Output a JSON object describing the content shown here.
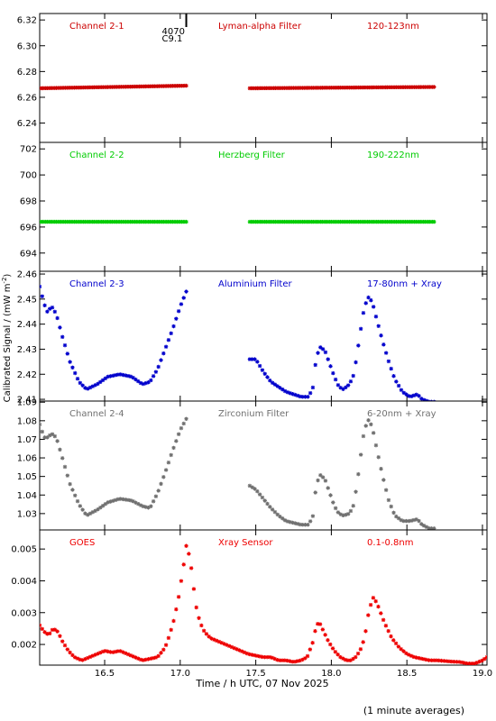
{
  "chart_data": {
    "type": "scatter",
    "xlabel": "Time / h UTC, 07 Nov 2025",
    "ylabel": "Calibrated Signal / (mW m",
    "ylabel_sup": "-2",
    "ylabel_close": ")",
    "footnote": "(1 minute averages)",
    "xlim": [
      16.07,
      19.03
    ],
    "xticks": [
      {
        "v": 16.5,
        "label": "16.5"
      },
      {
        "v": 17.0,
        "label": "17.0"
      },
      {
        "v": 17.5,
        "label": "17.5"
      },
      {
        "v": 18.0,
        "label": "18.0"
      },
      {
        "v": 18.5,
        "label": "18.5"
      },
      {
        "v": 19.0,
        "label": "19.0"
      }
    ],
    "event": {
      "x": 17.04,
      "label1": "4070",
      "label2": "C9.1"
    },
    "panels": [
      {
        "id": "ch2-1",
        "color": "#cc0000",
        "channel": "Channel 2-1",
        "filter": "Lyman-alpha Filter",
        "band": "120-123nm",
        "ylim": [
          6.225,
          6.325
        ],
        "yticks": [
          {
            "v": 6.24,
            "label": "6.24"
          },
          {
            "v": 6.26,
            "label": "6.26"
          },
          {
            "v": 6.28,
            "label": "6.28"
          },
          {
            "v": 6.3,
            "label": "6.30"
          },
          {
            "v": 6.32,
            "label": "6.32"
          }
        ],
        "segments": [
          {
            "x": [
              16.07,
              17.04
            ],
            "y": [
              6.267,
              6.269
            ]
          },
          {
            "x": [
              17.46,
              18.68
            ],
            "y": [
              6.267,
              6.268
            ]
          }
        ]
      },
      {
        "id": "ch2-2",
        "color": "#00cc00",
        "channel": "Channel 2-2",
        "filter": "Herzberg Filter",
        "band": "190-222nm",
        "ylim": [
          692.6,
          702.5
        ],
        "yticks": [
          {
            "v": 694,
            "label": "694"
          },
          {
            "v": 696,
            "label": "696"
          },
          {
            "v": 698,
            "label": "698"
          },
          {
            "v": 700,
            "label": "700"
          },
          {
            "v": 702,
            "label": "702"
          }
        ],
        "segments": [
          {
            "x": [
              16.07,
              17.04
            ],
            "y": [
              696.4,
              696.4
            ]
          },
          {
            "x": [
              17.46,
              18.68
            ],
            "y": [
              696.4,
              696.4
            ]
          }
        ]
      },
      {
        "id": "ch2-3",
        "color": "#0000cc",
        "channel": "Channel 2-3",
        "filter": "Aluminium Filter",
        "band": "17-80nm + Xray",
        "ylim": [
          2.4093,
          2.4611
        ],
        "yticks": [
          {
            "v": 2.41,
            "label": "2.41"
          },
          {
            "v": 2.42,
            "label": "2.42"
          },
          {
            "v": 2.43,
            "label": "2.43"
          },
          {
            "v": 2.44,
            "label": "2.44"
          },
          {
            "v": 2.45,
            "label": "2.45"
          },
          {
            "v": 2.46,
            "label": "2.46"
          }
        ],
        "curves": [
          {
            "x": [
              16.07,
              16.1,
              16.12,
              16.15,
              16.18,
              16.22,
              16.27,
              16.33,
              16.38,
              16.45,
              16.52,
              16.6,
              16.68,
              16.75,
              16.8,
              16.85,
              16.9,
              16.95,
              17.0,
              17.04
            ],
            "y": [
              2.455,
              2.448,
              2.445,
              2.447,
              2.444,
              2.435,
              2.425,
              2.417,
              2.414,
              2.416,
              2.419,
              2.42,
              2.419,
              2.416,
              2.417,
              2.422,
              2.43,
              2.438,
              2.447,
              2.453
            ]
          },
          {
            "x": [
              17.46,
              17.5,
              17.55,
              17.6,
              17.65,
              17.7,
              17.75,
              17.8,
              17.85,
              17.88,
              17.9,
              17.93,
              17.96,
              17.99,
              18.02,
              18.05,
              18.08,
              18.12,
              18.15,
              18.18,
              18.21,
              18.24,
              18.27,
              18.3,
              18.34,
              18.38,
              18.42,
              18.47,
              18.52,
              18.57,
              18.6,
              18.65,
              18.68
            ],
            "y": [
              2.426,
              2.426,
              2.421,
              2.417,
              2.415,
              2.413,
              2.412,
              2.411,
              2.411,
              2.415,
              2.427,
              2.431,
              2.429,
              2.424,
              2.419,
              2.415,
              2.414,
              2.416,
              2.42,
              2.432,
              2.444,
              2.451,
              2.449,
              2.442,
              2.433,
              2.425,
              2.418,
              2.413,
              2.411,
              2.412,
              2.41,
              2.409,
              2.409
            ]
          }
        ]
      },
      {
        "id": "ch2-4",
        "color": "#707070",
        "channel": "Channel 2-4",
        "filter": "Zirconium Filter",
        "band": "6-20nm + Xray",
        "ylim": [
          1.0212,
          1.0906
        ],
        "yticks": [
          {
            "v": 1.03,
            "label": "1.03"
          },
          {
            "v": 1.04,
            "label": "1.04"
          },
          {
            "v": 1.05,
            "label": "1.05"
          },
          {
            "v": 1.06,
            "label": "1.06"
          },
          {
            "v": 1.07,
            "label": "1.07"
          },
          {
            "v": 1.08,
            "label": "1.08"
          },
          {
            "v": 1.09,
            "label": "1.09"
          }
        ],
        "curves": [
          {
            "x": [
              16.07,
              16.1,
              16.12,
              16.15,
              16.18,
              16.22,
              16.27,
              16.33,
              16.38,
              16.45,
              16.52,
              16.6,
              16.68,
              16.75,
              16.8,
              16.85,
              16.9,
              16.95,
              17.0,
              17.04
            ],
            "y": [
              1.078,
              1.071,
              1.071,
              1.073,
              1.071,
              1.06,
              1.046,
              1.035,
              1.029,
              1.032,
              1.036,
              1.038,
              1.037,
              1.034,
              1.033,
              1.041,
              1.052,
              1.064,
              1.075,
              1.081
            ]
          },
          {
            "x": [
              17.46,
              17.5,
              17.55,
              17.6,
              17.65,
              17.7,
              17.75,
              17.8,
              17.85,
              17.88,
              17.9,
              17.93,
              17.96,
              17.99,
              18.02,
              18.05,
              18.08,
              18.12,
              18.15,
              18.18,
              18.21,
              18.24,
              18.27,
              18.3,
              18.34,
              18.38,
              18.42,
              18.47,
              18.52,
              18.57,
              18.6,
              18.65,
              18.68
            ],
            "y": [
              1.045,
              1.043,
              1.038,
              1.033,
              1.029,
              1.026,
              1.025,
              1.024,
              1.024,
              1.029,
              1.046,
              1.051,
              1.048,
              1.041,
              1.034,
              1.03,
              1.029,
              1.03,
              1.035,
              1.052,
              1.071,
              1.081,
              1.077,
              1.065,
              1.05,
              1.037,
              1.029,
              1.026,
              1.026,
              1.027,
              1.024,
              1.022,
              1.022
            ]
          }
        ]
      },
      {
        "id": "goes",
        "color": "#ee0000",
        "channel": "GOES",
        "filter": "Xray Sensor",
        "band": "0.1-0.8nm",
        "ylim": [
          0.00135,
          0.0056
        ],
        "yticks": [
          {
            "v": 0.002,
            "label": "0.002"
          },
          {
            "v": 0.003,
            "label": "0.003"
          },
          {
            "v": 0.004,
            "label": "0.004"
          },
          {
            "v": 0.005,
            "label": "0.005"
          }
        ],
        "curves": [
          {
            "x": [
              16.07,
              16.1,
              16.13,
              16.16,
              16.19,
              16.22,
              16.26,
              16.3,
              16.35,
              16.4,
              16.45,
              16.5,
              16.55,
              16.6,
              16.65,
              16.7,
              16.75,
              16.8,
              16.85,
              16.9,
              16.93,
              16.96,
              16.99,
              17.02,
              17.04,
              17.06,
              17.08,
              17.1,
              17.13,
              17.16,
              17.2,
              17.25,
              17.3,
              17.35,
              17.4,
              17.45,
              17.5,
              17.55,
              17.6,
              17.65,
              17.7,
              17.75,
              17.8,
              17.84,
              17.88,
              17.9,
              17.92,
              17.95,
              17.98,
              18.02,
              18.06,
              18.1,
              18.13,
              18.16,
              18.19,
              18.22,
              18.25,
              18.28,
              18.31,
              18.35,
              18.4,
              18.45,
              18.5,
              18.55,
              18.6,
              18.65,
              18.7,
              18.75,
              18.8,
              18.85,
              18.9,
              18.95,
              19.0,
              19.03
            ],
            "y": [
              0.0026,
              0.0024,
              0.0023,
              0.0025,
              0.0024,
              0.0021,
              0.0018,
              0.0016,
              0.0015,
              0.0016,
              0.0017,
              0.0018,
              0.00175,
              0.0018,
              0.0017,
              0.0016,
              0.0015,
              0.00155,
              0.0016,
              0.0019,
              0.0023,
              0.0028,
              0.0035,
              0.0044,
              0.0051,
              0.0048,
              0.0042,
              0.0033,
              0.0027,
              0.0024,
              0.0022,
              0.0021,
              0.002,
              0.0019,
              0.0018,
              0.0017,
              0.00165,
              0.0016,
              0.0016,
              0.0015,
              0.0015,
              0.00145,
              0.0015,
              0.0016,
              0.0021,
              0.0026,
              0.0027,
              0.0024,
              0.0021,
              0.0018,
              0.0016,
              0.0015,
              0.0015,
              0.0016,
              0.0018,
              0.0022,
              0.0031,
              0.0035,
              0.0032,
              0.0027,
              0.0022,
              0.0019,
              0.0017,
              0.0016,
              0.00155,
              0.0015,
              0.0015,
              0.00148,
              0.00146,
              0.00145,
              0.0014,
              0.0014,
              0.0015,
              0.0016
            ]
          }
        ]
      }
    ]
  }
}
